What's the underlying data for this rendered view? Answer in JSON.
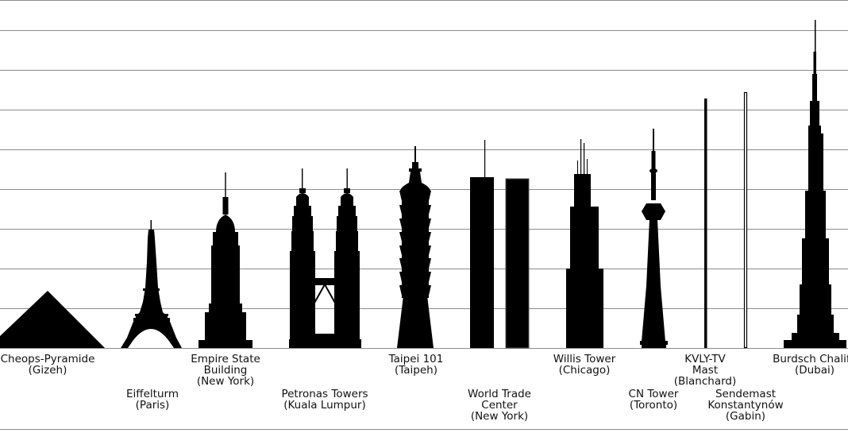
{
  "colors": {
    "silhouette": "#000000",
    "grid": "#8c8c8c",
    "background": "#ffffff",
    "outline": "#555555"
  },
  "structures": [
    {
      "key": "cheops",
      "label": "Cheops-Pyramide\n(Gizeh)"
    },
    {
      "key": "eiffel",
      "label": "Eiffelturm\n(Paris)"
    },
    {
      "key": "empire",
      "label": "Empire State\nBuilding\n(New York)"
    },
    {
      "key": "petronas",
      "label": "Petronas Towers\n(Kuala Lumpur)"
    },
    {
      "key": "taipei",
      "label": "Taipei 101\n(Taipeh)"
    },
    {
      "key": "wtc",
      "label": "World Trade\nCenter\n(New York)"
    },
    {
      "key": "willis",
      "label": "Willis Tower\n(Chicago)"
    },
    {
      "key": "cn",
      "label": "CN Tower\n(Toronto)"
    },
    {
      "key": "kvly",
      "label": "KVLY-TV\nMast\n(Blanchard)"
    },
    {
      "key": "warsaw",
      "label": "Sendemast\nKonstantynów\n(Gabin)"
    },
    {
      "key": "burj",
      "label": "Burdsch Chalifa\n(Dubai)"
    }
  ]
}
